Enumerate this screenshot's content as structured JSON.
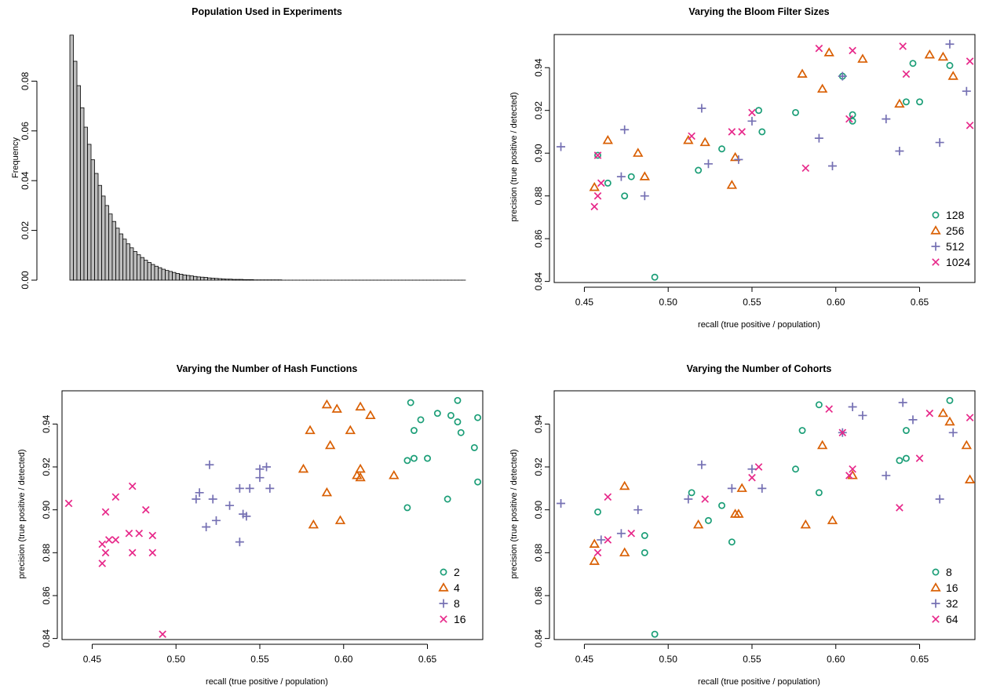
{
  "colors": {
    "teal": "#1b9e77",
    "orange": "#d95f02",
    "purple": "#7570b3",
    "magenta": "#e7298a",
    "bar_fill": "#bebebe"
  },
  "chart_data": [
    {
      "type": "bar",
      "title": "Population Used in Experiments",
      "ylabel": "Frequency",
      "xlabel": "",
      "ylim": [
        0,
        0.1
      ],
      "yticks": [
        "0.00",
        "0.02",
        "0.04",
        "0.06",
        "0.08"
      ],
      "values": [
        0.0985,
        0.088,
        0.0782,
        0.0693,
        0.0615,
        0.0546,
        0.0484,
        0.0429,
        0.0381,
        0.0338,
        0.03,
        0.0266,
        0.0236,
        0.0209,
        0.0186,
        0.0165,
        0.0146,
        0.013,
        0.0115,
        0.0102,
        0.0091,
        0.008,
        0.0071,
        0.0063,
        0.0056,
        0.005,
        0.0044,
        0.0039,
        0.0035,
        0.0031,
        0.0027,
        0.0024,
        0.0021,
        0.0019,
        0.0017,
        0.0015,
        0.0013,
        0.0012,
        0.0011,
        0.0009,
        0.0008,
        0.0007,
        0.0006,
        0.0005,
        0.0004,
        0.0004,
        0.0003,
        0.0003,
        0.0003,
        0.0002,
        0.0002,
        0.0002,
        0.0001,
        0.0001,
        0.0001,
        0.0001,
        0.0001,
        0.0001,
        0.0001,
        0.0001,
        0,
        0,
        0,
        0,
        0,
        0,
        0,
        0,
        0,
        0,
        0,
        0,
        0,
        0,
        0,
        0,
        0,
        0,
        0,
        0,
        0,
        0,
        0,
        0,
        0,
        0,
        0,
        0,
        0,
        0,
        0,
        0,
        0,
        0,
        0,
        0,
        0,
        0,
        0,
        0,
        0,
        0,
        0,
        0,
        0,
        0,
        0,
        0,
        0,
        0,
        0,
        0
      ]
    },
    {
      "type": "scatter",
      "title": "Varying the Bloom Filter Sizes",
      "xlabel": "recall (true positive / population)",
      "ylabel": "precision (true positive / detected)",
      "xlim": [
        0.432,
        0.683
      ],
      "ylim": [
        0.8395,
        0.9555
      ],
      "xticks": [
        "0.45",
        "0.50",
        "0.55",
        "0.60",
        "0.65"
      ],
      "yticks": [
        "0.84",
        "0.86",
        "0.88",
        "0.90",
        "0.92",
        "0.94"
      ],
      "legend_position": "bottom-right",
      "series": [
        {
          "name": "128",
          "marker": "circle",
          "color": "#1b9e77",
          "points": [
            [
              0.458,
              0.899
            ],
            [
              0.464,
              0.886
            ],
            [
              0.474,
              0.88
            ],
            [
              0.478,
              0.889
            ],
            [
              0.492,
              0.842
            ],
            [
              0.518,
              0.892
            ],
            [
              0.532,
              0.902
            ],
            [
              0.554,
              0.92
            ],
            [
              0.556,
              0.91
            ],
            [
              0.576,
              0.919
            ],
            [
              0.604,
              0.936
            ],
            [
              0.61,
              0.918
            ],
            [
              0.61,
              0.915
            ],
            [
              0.642,
              0.924
            ],
            [
              0.646,
              0.942
            ],
            [
              0.65,
              0.924
            ],
            [
              0.668,
              0.941
            ]
          ]
        },
        {
          "name": "256",
          "marker": "triangle",
          "color": "#d95f02",
          "points": [
            [
              0.456,
              0.884
            ],
            [
              0.464,
              0.906
            ],
            [
              0.482,
              0.9
            ],
            [
              0.486,
              0.889
            ],
            [
              0.512,
              0.906
            ],
            [
              0.522,
              0.905
            ],
            [
              0.538,
              0.885
            ],
            [
              0.54,
              0.898
            ],
            [
              0.58,
              0.937
            ],
            [
              0.592,
              0.93
            ],
            [
              0.596,
              0.947
            ],
            [
              0.616,
              0.944
            ],
            [
              0.638,
              0.923
            ],
            [
              0.656,
              0.946
            ],
            [
              0.664,
              0.945
            ],
            [
              0.67,
              0.936
            ]
          ]
        },
        {
          "name": "512",
          "marker": "plus",
          "color": "#7570b3",
          "points": [
            [
              0.436,
              0.903
            ],
            [
              0.474,
              0.911
            ],
            [
              0.472,
              0.889
            ],
            [
              0.486,
              0.88
            ],
            [
              0.52,
              0.921
            ],
            [
              0.524,
              0.895
            ],
            [
              0.542,
              0.897
            ],
            [
              0.55,
              0.915
            ],
            [
              0.59,
              0.907
            ],
            [
              0.598,
              0.894
            ],
            [
              0.604,
              0.936
            ],
            [
              0.63,
              0.916
            ],
            [
              0.638,
              0.901
            ],
            [
              0.662,
              0.905
            ],
            [
              0.668,
              0.951
            ],
            [
              0.678,
              0.929
            ]
          ]
        },
        {
          "name": "1024",
          "marker": "cross",
          "color": "#e7298a",
          "points": [
            [
              0.456,
              0.875
            ],
            [
              0.458,
              0.88
            ],
            [
              0.46,
              0.886
            ],
            [
              0.458,
              0.899
            ],
            [
              0.514,
              0.908
            ],
            [
              0.538,
              0.91
            ],
            [
              0.544,
              0.91
            ],
            [
              0.55,
              0.919
            ],
            [
              0.582,
              0.893
            ],
            [
              0.59,
              0.949
            ],
            [
              0.608,
              0.916
            ],
            [
              0.61,
              0.948
            ],
            [
              0.64,
              0.95
            ],
            [
              0.642,
              0.937
            ],
            [
              0.68,
              0.943
            ],
            [
              0.68,
              0.913
            ]
          ]
        }
      ]
    },
    {
      "type": "scatter",
      "title": "Varying the Number of Hash Functions",
      "xlabel": "recall (true positive / population)",
      "ylabel": "precision (true positive / detected)",
      "xlim": [
        0.432,
        0.683
      ],
      "ylim": [
        0.8395,
        0.9555
      ],
      "xticks": [
        "0.45",
        "0.50",
        "0.55",
        "0.60",
        "0.65"
      ],
      "yticks": [
        "0.84",
        "0.86",
        "0.88",
        "0.90",
        "0.92",
        "0.94"
      ],
      "legend_position": "bottom-right",
      "series": [
        {
          "name": "2",
          "marker": "circle",
          "color": "#1b9e77",
          "points": [
            [
              0.638,
              0.901
            ],
            [
              0.638,
              0.923
            ],
            [
              0.64,
              0.95
            ],
            [
              0.642,
              0.924
            ],
            [
              0.642,
              0.937
            ],
            [
              0.646,
              0.942
            ],
            [
              0.65,
              0.924
            ],
            [
              0.656,
              0.945
            ],
            [
              0.662,
              0.905
            ],
            [
              0.664,
              0.944
            ],
            [
              0.668,
              0.941
            ],
            [
              0.668,
              0.951
            ],
            [
              0.67,
              0.936
            ],
            [
              0.678,
              0.929
            ],
            [
              0.68,
              0.943
            ],
            [
              0.68,
              0.913
            ]
          ]
        },
        {
          "name": "4",
          "marker": "triangle",
          "color": "#d95f02",
          "points": [
            [
              0.576,
              0.919
            ],
            [
              0.58,
              0.937
            ],
            [
              0.582,
              0.893
            ],
            [
              0.59,
              0.949
            ],
            [
              0.59,
              0.908
            ],
            [
              0.592,
              0.93
            ],
            [
              0.596,
              0.947
            ],
            [
              0.598,
              0.895
            ],
            [
              0.604,
              0.937
            ],
            [
              0.608,
              0.916
            ],
            [
              0.61,
              0.915
            ],
            [
              0.61,
              0.948
            ],
            [
              0.61,
              0.919
            ],
            [
              0.616,
              0.944
            ],
            [
              0.63,
              0.916
            ]
          ]
        },
        {
          "name": "8",
          "marker": "plus",
          "color": "#7570b3",
          "points": [
            [
              0.512,
              0.905
            ],
            [
              0.514,
              0.908
            ],
            [
              0.518,
              0.892
            ],
            [
              0.52,
              0.921
            ],
            [
              0.522,
              0.905
            ],
            [
              0.524,
              0.895
            ],
            [
              0.532,
              0.902
            ],
            [
              0.538,
              0.91
            ],
            [
              0.538,
              0.885
            ],
            [
              0.54,
              0.898
            ],
            [
              0.542,
              0.897
            ],
            [
              0.544,
              0.91
            ],
            [
              0.55,
              0.915
            ],
            [
              0.55,
              0.919
            ],
            [
              0.554,
              0.92
            ],
            [
              0.556,
              0.91
            ]
          ]
        },
        {
          "name": "16",
          "marker": "cross",
          "color": "#e7298a",
          "points": [
            [
              0.436,
              0.903
            ],
            [
              0.456,
              0.884
            ],
            [
              0.456,
              0.875
            ],
            [
              0.458,
              0.88
            ],
            [
              0.458,
              0.899
            ],
            [
              0.46,
              0.886
            ],
            [
              0.464,
              0.906
            ],
            [
              0.464,
              0.886
            ],
            [
              0.472,
              0.889
            ],
            [
              0.474,
              0.911
            ],
            [
              0.474,
              0.88
            ],
            [
              0.478,
              0.889
            ],
            [
              0.482,
              0.9
            ],
            [
              0.486,
              0.888
            ],
            [
              0.486,
              0.88
            ],
            [
              0.492,
              0.842
            ]
          ]
        }
      ]
    },
    {
      "type": "scatter",
      "title": "Varying the Number of Cohorts",
      "xlabel": "recall (true positive / population)",
      "ylabel": "precision (true positive / detected)",
      "xlim": [
        0.432,
        0.683
      ],
      "ylim": [
        0.8395,
        0.9555
      ],
      "xticks": [
        "0.45",
        "0.50",
        "0.55",
        "0.60",
        "0.65"
      ],
      "yticks": [
        "0.84",
        "0.86",
        "0.88",
        "0.90",
        "0.92",
        "0.94"
      ],
      "legend_position": "bottom-right",
      "series": [
        {
          "name": "8",
          "marker": "circle",
          "color": "#1b9e77",
          "points": [
            [
              0.458,
              0.899
            ],
            [
              0.486,
              0.888
            ],
            [
              0.486,
              0.88
            ],
            [
              0.492,
              0.842
            ],
            [
              0.514,
              0.908
            ],
            [
              0.524,
              0.895
            ],
            [
              0.532,
              0.902
            ],
            [
              0.538,
              0.885
            ],
            [
              0.576,
              0.919
            ],
            [
              0.58,
              0.937
            ],
            [
              0.59,
              0.949
            ],
            [
              0.59,
              0.908
            ],
            [
              0.638,
              0.923
            ],
            [
              0.642,
              0.924
            ],
            [
              0.642,
              0.937
            ],
            [
              0.668,
              0.951
            ]
          ]
        },
        {
          "name": "16",
          "marker": "triangle",
          "color": "#d95f02",
          "points": [
            [
              0.456,
              0.884
            ],
            [
              0.456,
              0.876
            ],
            [
              0.474,
              0.911
            ],
            [
              0.474,
              0.88
            ],
            [
              0.518,
              0.893
            ],
            [
              0.54,
              0.898
            ],
            [
              0.542,
              0.898
            ],
            [
              0.544,
              0.91
            ],
            [
              0.582,
              0.893
            ],
            [
              0.592,
              0.93
            ],
            [
              0.598,
              0.895
            ],
            [
              0.61,
              0.916
            ],
            [
              0.664,
              0.945
            ],
            [
              0.668,
              0.941
            ],
            [
              0.678,
              0.93
            ],
            [
              0.68,
              0.914
            ]
          ]
        },
        {
          "name": "32",
          "marker": "plus",
          "color": "#7570b3",
          "points": [
            [
              0.436,
              0.903
            ],
            [
              0.46,
              0.886
            ],
            [
              0.472,
              0.889
            ],
            [
              0.482,
              0.9
            ],
            [
              0.512,
              0.905
            ],
            [
              0.52,
              0.921
            ],
            [
              0.538,
              0.91
            ],
            [
              0.55,
              0.919
            ],
            [
              0.556,
              0.91
            ],
            [
              0.604,
              0.936
            ],
            [
              0.61,
              0.948
            ],
            [
              0.616,
              0.944
            ],
            [
              0.63,
              0.916
            ],
            [
              0.64,
              0.95
            ],
            [
              0.646,
              0.942
            ],
            [
              0.662,
              0.905
            ],
            [
              0.67,
              0.936
            ]
          ]
        },
        {
          "name": "64",
          "marker": "cross",
          "color": "#e7298a",
          "points": [
            [
              0.458,
              0.88
            ],
            [
              0.464,
              0.906
            ],
            [
              0.464,
              0.886
            ],
            [
              0.478,
              0.889
            ],
            [
              0.522,
              0.905
            ],
            [
              0.55,
              0.915
            ],
            [
              0.554,
              0.92
            ],
            [
              0.596,
              0.947
            ],
            [
              0.604,
              0.936
            ],
            [
              0.608,
              0.916
            ],
            [
              0.61,
              0.919
            ],
            [
              0.638,
              0.901
            ],
            [
              0.65,
              0.924
            ],
            [
              0.656,
              0.945
            ],
            [
              0.68,
              0.943
            ]
          ]
        }
      ]
    }
  ]
}
